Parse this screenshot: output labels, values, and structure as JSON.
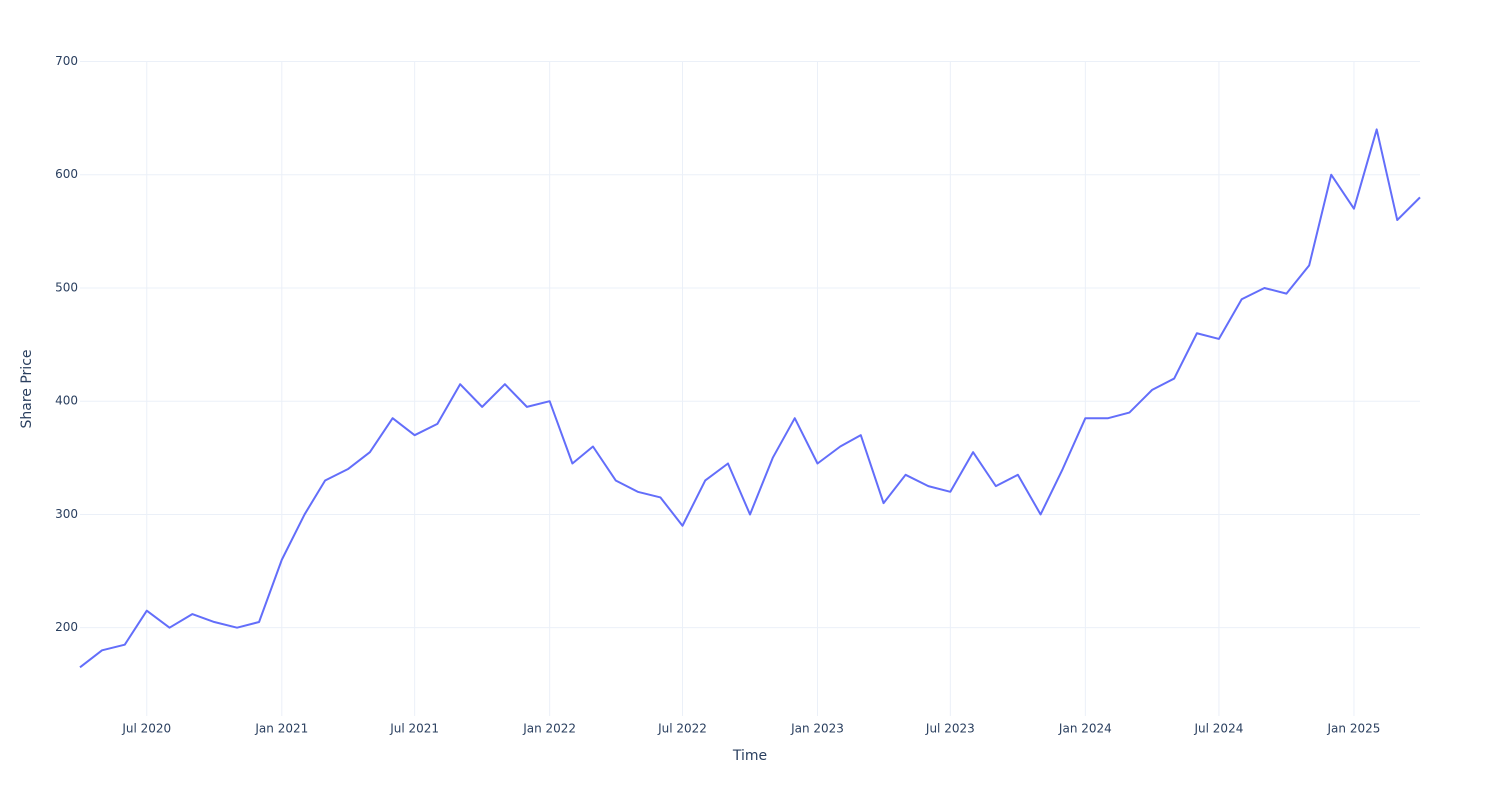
{
  "chart_data": {
    "type": "line",
    "x_label": "Time",
    "y_label": "Share Price",
    "x": [
      "2020-04",
      "2020-05",
      "2020-06",
      "2020-07",
      "2020-08",
      "2020-09",
      "2020-10",
      "2020-11",
      "2020-12",
      "2021-01",
      "2021-02",
      "2021-03",
      "2021-04",
      "2021-05",
      "2021-06",
      "2021-07",
      "2021-08",
      "2021-09",
      "2021-10",
      "2021-11",
      "2021-12",
      "2022-01",
      "2022-02",
      "2022-03",
      "2022-04",
      "2022-05",
      "2022-06",
      "2022-07",
      "2022-08",
      "2022-09",
      "2022-10",
      "2022-11",
      "2022-12",
      "2023-01",
      "2023-02",
      "2023-03",
      "2023-04",
      "2023-05",
      "2023-06",
      "2023-07",
      "2023-08",
      "2023-09",
      "2023-10",
      "2023-11",
      "2023-12",
      "2024-01",
      "2024-02",
      "2024-03",
      "2024-04",
      "2024-05",
      "2024-06",
      "2024-07",
      "2024-08",
      "2024-09",
      "2024-10",
      "2024-11",
      "2024-12",
      "2025-01",
      "2025-02",
      "2025-03",
      "2025-04"
    ],
    "series": [
      {
        "color": "#636efa",
        "values": [
          165,
          180,
          185,
          215,
          200,
          212,
          205,
          200,
          205,
          260,
          300,
          330,
          340,
          355,
          385,
          370,
          380,
          415,
          395,
          415,
          395,
          400,
          345,
          360,
          330,
          320,
          315,
          290,
          330,
          345,
          300,
          350,
          385,
          345,
          360,
          370,
          310,
          335,
          325,
          320,
          355,
          325,
          335,
          300,
          340,
          385,
          385,
          390,
          410,
          420,
          460,
          455,
          490,
          500,
          495,
          520,
          600,
          570,
          640,
          560,
          580
        ]
      }
    ],
    "xlim": [
      "2020-04",
      "2025-04"
    ],
    "xticks": [
      {
        "value": "2020-07",
        "label": "Jul 2020"
      },
      {
        "value": "2021-01",
        "label": "Jan 2021"
      },
      {
        "value": "2021-07",
        "label": "Jul 2021"
      },
      {
        "value": "2022-01",
        "label": "Jan 2022"
      },
      {
        "value": "2022-07",
        "label": "Jul 2022"
      },
      {
        "value": "2023-01",
        "label": "Jan 2023"
      },
      {
        "value": "2023-07",
        "label": "Jul 2023"
      },
      {
        "value": "2024-01",
        "label": "Jan 2024"
      },
      {
        "value": "2024-07",
        "label": "Jul 2024"
      },
      {
        "value": "2025-01",
        "label": "Jan 2025"
      }
    ],
    "ylim": [
      122,
      700
    ],
    "yticks": [
      200,
      300,
      400,
      500,
      600,
      700
    ],
    "grid": true
  }
}
